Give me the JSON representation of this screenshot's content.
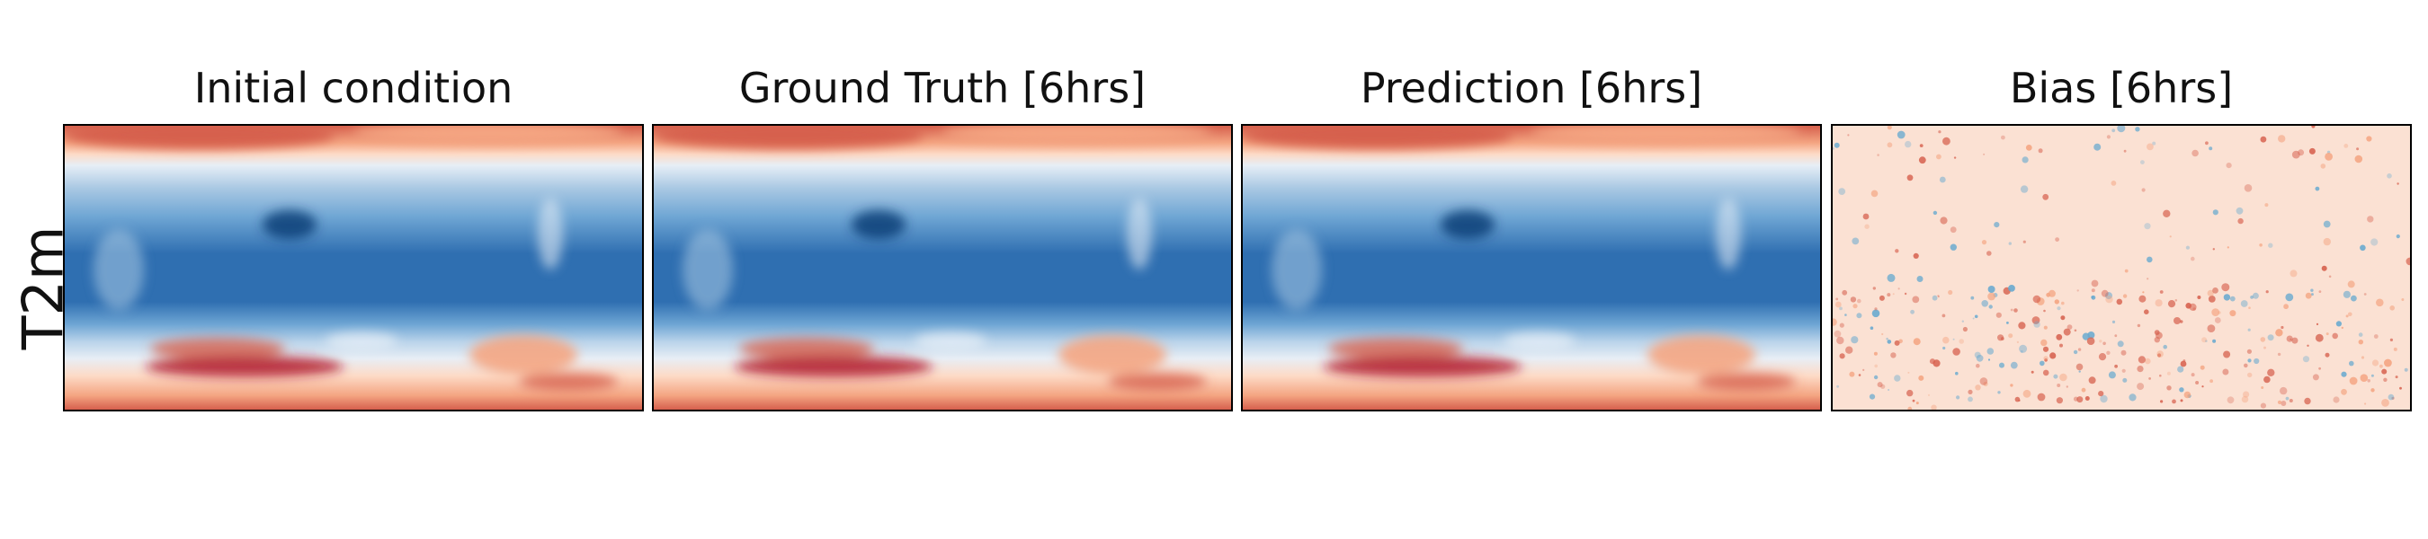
{
  "row_label": "T2m",
  "panels": [
    {
      "title": "Initial condition",
      "kind": "field"
    },
    {
      "title": "Ground Truth [6hrs]",
      "kind": "field"
    },
    {
      "title": "Prediction [6hrs]",
      "kind": "field"
    },
    {
      "title": "Bias [6hrs]",
      "kind": "bias"
    }
  ],
  "colors": {
    "cold_dark": "#08306b",
    "cold": "#2f6fb1",
    "cool": "#6fa6d4",
    "neutral": "#f7f7f7",
    "warm_light": "#fddbc7",
    "warm": "#f4a582",
    "hot": "#d6604d",
    "hot_dark": "#b2182b",
    "bias_background": "#fbe1d3"
  }
}
